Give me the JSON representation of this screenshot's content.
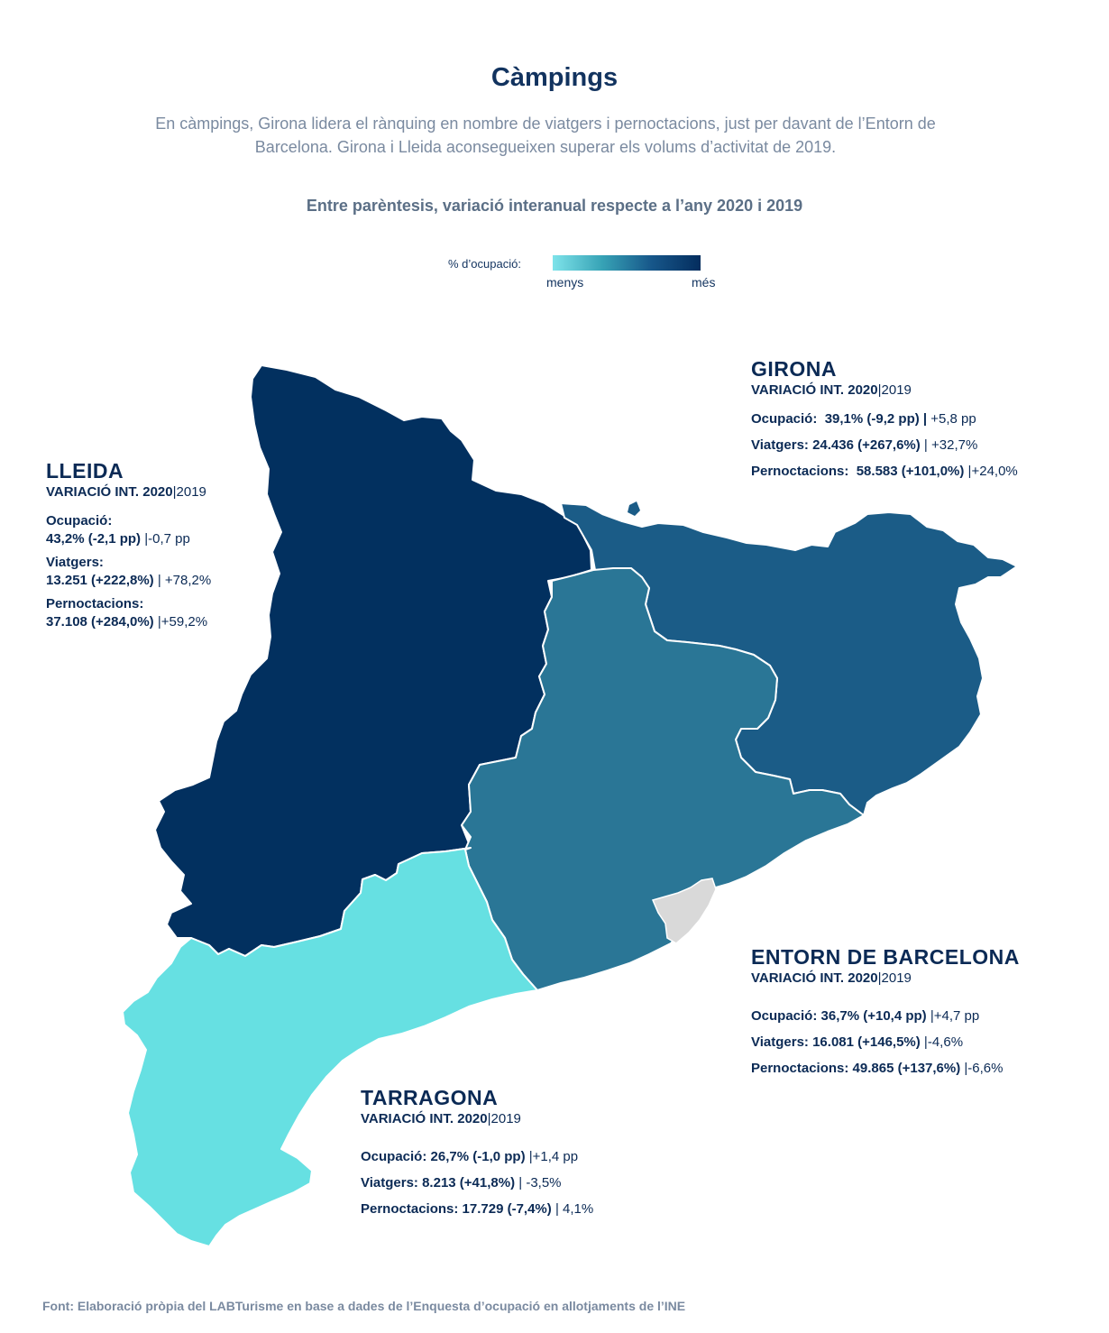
{
  "title": "Càmpings",
  "subtitle": "En càmpings, Girona lidera el rànquing en nombre de viatgers i pernoctacions, just per davant de l’Entorn de Barcelona. Girona i Lleida aconsegueixen superar els volums d’activitat de 2019.",
  "note": "Entre parèntesis, variació interanual respecte a l’any 2020 i 2019",
  "legend": {
    "label": "% d’ocupació:",
    "min": "menys",
    "max": "més",
    "colors": [
      "#7ee3ea",
      "#37a3b6",
      "#17578a",
      "#042d5e"
    ]
  },
  "colors": {
    "lleida": "#02305f",
    "girona": "#1b5c87",
    "barcelona": "#2a7696",
    "tarragona": "#66e0e2",
    "city": "#d9d9d9"
  },
  "regions": {
    "lleida": {
      "name": "LLEIDA",
      "var_label": "VARIACIÓ INT. 2020",
      "var_year": "2019",
      "occ_label": "Ocupació:",
      "occ_value": "43,2% (-2,1 pp)",
      "occ_prev": "-0,7 pp",
      "trav_label": "Viatgers:",
      "trav_value": "13.251 (+222,8%)",
      "trav_prev": "+78,2%",
      "nights_label": "Pernoctacions:",
      "nights_value": "37.108 (+284,0%)",
      "nights_prev": "+59,2%"
    },
    "girona": {
      "name": "GIRONA",
      "var_label": "VARIACIÓ INT. 2020",
      "var_year": "2019",
      "occ_label": "Ocupació:",
      "occ_value": "39,1% (-9,2 pp)",
      "occ_prev": "+5,8 pp",
      "trav_label": "Viatgers:",
      "trav_value": "24.436 (+267,6%)",
      "trav_prev": "+32,7%",
      "nights_label": "Pernoctacions:",
      "nights_value": "58.583 (+101,0%)",
      "nights_prev": "+24,0%"
    },
    "barcelona": {
      "name": "ENTORN DE BARCELONA",
      "var_label": "VARIACIÓ INT. 2020",
      "var_year": "2019",
      "occ_label": "Ocupació:",
      "occ_value": "36,7% (+10,4 pp)",
      "occ_prev": "+4,7 pp",
      "trav_label": "Viatgers:",
      "trav_value": "16.081 (+146,5%)",
      "trav_prev": "-4,6%",
      "nights_label": "Pernoctacions:",
      "nights_value": "49.865 (+137,6%)",
      "nights_prev": "-6,6%"
    },
    "tarragona": {
      "name": "TARRAGONA",
      "var_label": "VARIACIÓ INT. 2020",
      "var_year": "2019",
      "occ_label": "Ocupació:",
      "occ_value": "26,7% (-1,0 pp)",
      "occ_prev": "+1,4 pp",
      "trav_label": "Viatgers:",
      "trav_value": "8.213 (+41,8%)",
      "trav_prev": "-3,5%",
      "nights_label": "Pernoctacions:",
      "nights_value": "17.729 (-7,4%)",
      "nights_prev": "4,1%"
    }
  },
  "source": "Font: Elaboració pròpia del LABTurisme en base a dades de l’Enquesta d’ocupació en allotjaments de l’INE"
}
